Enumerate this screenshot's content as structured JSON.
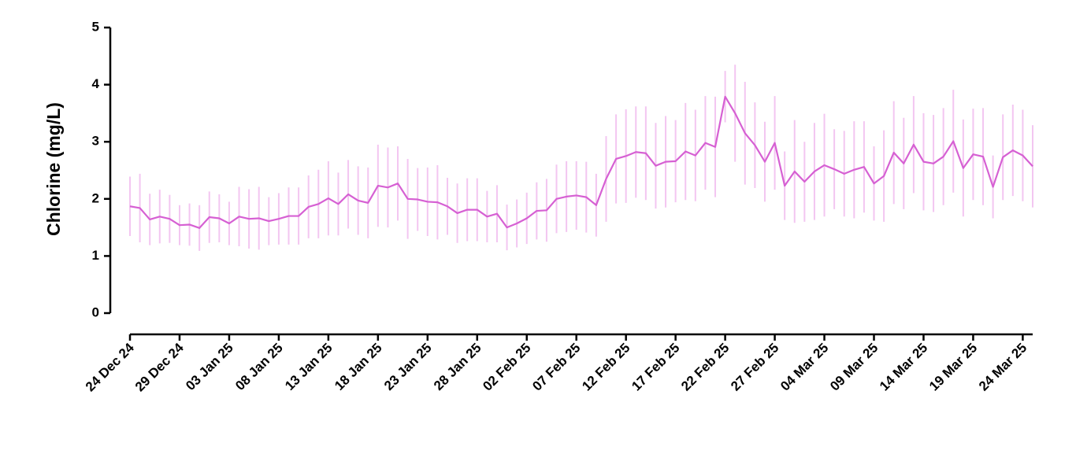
{
  "chart_data": {
    "type": "line",
    "ylabel": "Chlorine (mg/L)",
    "categories": [
      "24 Dec 24",
      null,
      null,
      null,
      null,
      "29 Dec 24",
      null,
      null,
      null,
      null,
      "03 Jan 25",
      null,
      null,
      null,
      null,
      "08 Jan 25",
      null,
      null,
      null,
      null,
      "13 Jan 25",
      null,
      null,
      null,
      null,
      "18 Jan 25",
      null,
      null,
      null,
      null,
      "23 Jan 25",
      null,
      null,
      null,
      null,
      "28 Jan 25",
      null,
      null,
      null,
      null,
      "02 Feb 25",
      null,
      null,
      null,
      null,
      "07 Feb 25",
      null,
      null,
      null,
      null,
      "12 Feb 25",
      null,
      null,
      null,
      null,
      "17 Feb 25",
      null,
      null,
      null,
      null,
      "22 Feb 25",
      null,
      null,
      null,
      null,
      "27 Feb 25",
      null,
      null,
      null,
      null,
      "04 Mar 25",
      null,
      null,
      null,
      null,
      "09 Mar 25",
      null,
      null,
      null,
      null,
      "14 Mar 25",
      null,
      null,
      null,
      null,
      "19 Mar 25",
      null,
      null,
      null,
      null,
      "24 Mar 25",
      null
    ],
    "values": [
      1.87,
      1.84,
      1.64,
      1.69,
      1.65,
      1.54,
      1.55,
      1.49,
      1.68,
      1.66,
      1.57,
      1.69,
      1.65,
      1.66,
      1.61,
      1.65,
      1.7,
      1.7,
      1.86,
      1.91,
      2.01,
      1.91,
      2.08,
      1.97,
      1.93,
      2.23,
      2.2,
      2.27,
      2.0,
      1.99,
      1.95,
      1.94,
      1.87,
      1.75,
      1.81,
      1.81,
      1.69,
      1.74,
      1.5,
      1.57,
      1.66,
      1.79,
      1.8,
      2.0,
      2.04,
      2.06,
      2.03,
      1.89,
      2.35,
      2.7,
      2.75,
      2.82,
      2.8,
      2.58,
      2.65,
      2.66,
      2.83,
      2.76,
      2.98,
      2.91,
      3.79,
      3.5,
      3.15,
      2.94,
      2.65,
      2.98,
      2.23,
      2.48,
      2.3,
      2.48,
      2.59,
      2.52,
      2.44,
      2.51,
      2.56,
      2.27,
      2.4,
      2.81,
      2.62,
      2.95,
      2.65,
      2.62,
      2.74,
      3.01,
      2.54,
      2.78,
      2.74,
      2.21,
      2.73,
      2.85,
      2.76,
      2.57
    ],
    "errors": [
      0.52,
      0.6,
      0.45,
      0.47,
      0.42,
      0.35,
      0.37,
      0.4,
      0.45,
      0.42,
      0.38,
      0.52,
      0.52,
      0.55,
      0.42,
      0.45,
      0.5,
      0.5,
      0.55,
      0.6,
      0.65,
      0.55,
      0.6,
      0.6,
      0.62,
      0.72,
      0.7,
      0.65,
      0.7,
      0.55,
      0.6,
      0.65,
      0.5,
      0.52,
      0.55,
      0.55,
      0.45,
      0.5,
      0.4,
      0.42,
      0.45,
      0.5,
      0.55,
      0.6,
      0.62,
      0.6,
      0.62,
      0.55,
      0.75,
      0.78,
      0.82,
      0.8,
      0.82,
      0.75,
      0.8,
      0.72,
      0.85,
      0.8,
      0.82,
      0.88,
      0.45,
      0.85,
      0.9,
      0.75,
      0.7,
      0.82,
      0.6,
      0.9,
      0.7,
      0.85,
      0.9,
      0.7,
      0.75,
      0.85,
      0.8,
      0.65,
      0.8,
      0.9,
      0.8,
      0.85,
      0.85,
      0.85,
      0.85,
      0.9,
      0.85,
      0.8,
      0.85,
      0.55,
      0.75,
      0.8,
      0.8,
      0.72
    ],
    "color": "#d660d3",
    "error_color": "#f3c6f1",
    "ylim": [
      0,
      5
    ],
    "yticks": [
      0,
      1,
      2,
      3,
      4,
      5
    ]
  }
}
